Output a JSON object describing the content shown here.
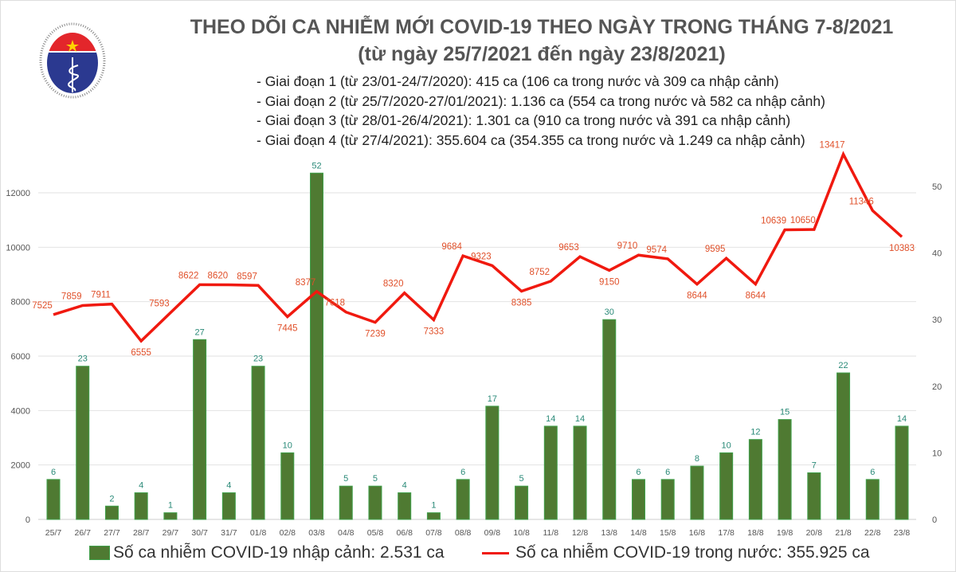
{
  "header": {
    "logo_text_top": "BỘ Y TẾ",
    "logo_text_bottom": "MINISTRY OF HEALTH",
    "title": "THEO DÕI CA NHIỄM MỚI COVID-19 THEO NGÀY TRONG THÁNG 7-8/2021",
    "subtitle": "(từ ngày 25/7/2021 đến ngày 23/8/2021)",
    "notes": [
      "- Giai đoạn 1 (từ 23/01-24/7/2020): 415 ca (106 ca trong nước và 309 ca nhập cảnh)",
      "- Giai đoạn 2 (từ 25/7/2020-27/01/2021): 1.136 ca (554 ca trong nước và 582 ca nhập cảnh)",
      "- Giai đoạn 3 (từ 28/01-26/4/2021): 1.301 ca (910 ca trong nước và 391 ca nhập cảnh)",
      "- Giai đoạn 4 (từ 27/4/2021): 355.604 ca (354.355 ca trong nước và 1.249 ca nhập cảnh)"
    ]
  },
  "chart_data": {
    "type": "bar+line",
    "title": "THEO DÕI CA NHIỄM MỚI COVID-19 THEO NGÀY TRONG THÁNG 7-8/2021",
    "categories": [
      "25/7",
      "26/7",
      "27/7",
      "28/7",
      "29/7",
      "30/7",
      "31/7",
      "01/8",
      "02/8",
      "03/8",
      "04/8",
      "05/8",
      "06/8",
      "07/8",
      "08/8",
      "09/8",
      "10/8",
      "11/8",
      "12/8",
      "13/8",
      "14/8",
      "15/8",
      "16/8",
      "17/8",
      "18/8",
      "19/8",
      "20/8",
      "21/8",
      "22/8",
      "23/8"
    ],
    "series": [
      {
        "name": "Số ca nhiễm COVID-19 nhập cảnh: 2.531 ca",
        "type": "bar",
        "axis": "right",
        "color": "#4f7a32",
        "values": [
          6,
          23,
          2,
          4,
          1,
          27,
          4,
          23,
          10,
          52,
          5,
          5,
          4,
          1,
          6,
          17,
          5,
          14,
          14,
          30,
          6,
          6,
          8,
          10,
          12,
          15,
          7,
          22,
          6,
          14
        ]
      },
      {
        "name": "Số ca nhiễm COVID-19 trong nước: 355.925 ca",
        "type": "line",
        "axis": "left",
        "color": "#f0190f",
        "values": [
          7525,
          7859,
          7911,
          6555,
          7593,
          8622,
          8620,
          8597,
          7445,
          8377,
          7618,
          7239,
          8320,
          7333,
          9684,
          9323,
          8385,
          8752,
          9653,
          9150,
          9710,
          9574,
          8644,
          9595,
          8644,
          10639,
          10650,
          13417,
          11346,
          10383
        ]
      }
    ],
    "left_axis": {
      "ylim": [
        0,
        14000
      ],
      "ticks": [
        0,
        2000,
        4000,
        6000,
        8000,
        10000,
        12000
      ]
    },
    "right_axis": {
      "ylim": [
        0,
        56
      ],
      "ticks": [
        0,
        10,
        20,
        30,
        40,
        50
      ]
    },
    "grid": true,
    "legend": "bottom"
  }
}
